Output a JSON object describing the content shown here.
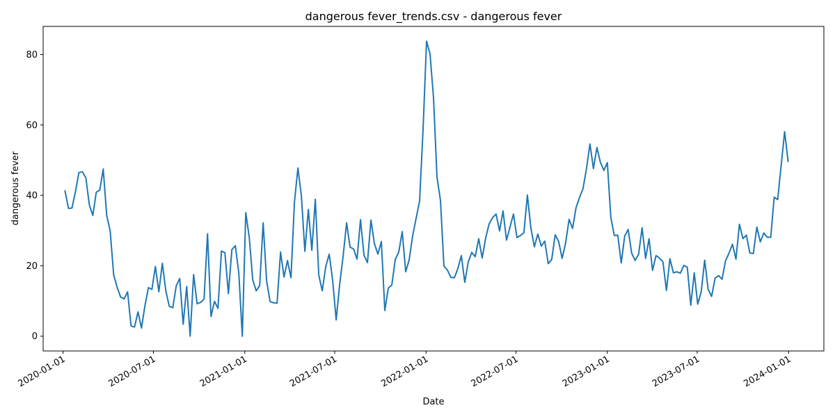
{
  "chart_data": {
    "type": "line",
    "title": "dangerous fever_trends.csv - dangerous fever",
    "xlabel": "Date",
    "ylabel": "dangerous fever",
    "xlim": [
      "2019-11-22",
      "2024-03-12"
    ],
    "ylim": [
      -4.2,
      88
    ],
    "x_ticks": [
      "2020-01-01",
      "2020-07-01",
      "2021-01-01",
      "2021-07-01",
      "2022-01-01",
      "2022-07-01",
      "2023-01-01",
      "2023-07-01",
      "2024-01-01"
    ],
    "y_ticks": [
      0,
      20,
      40,
      60,
      80
    ],
    "grid": false,
    "legend": "none",
    "series": [
      {
        "color": "#1f77b4",
        "points": [
          [
            "2020-01-05",
            41.3
          ],
          [
            "2020-01-12",
            36.3
          ],
          [
            "2020-01-19",
            36.4
          ],
          [
            "2020-01-26",
            41.0
          ],
          [
            "2020-02-02",
            46.5
          ],
          [
            "2020-02-09",
            46.7
          ],
          [
            "2020-02-16",
            45.0
          ],
          [
            "2020-02-23",
            37.3
          ],
          [
            "2020-03-01",
            34.3
          ],
          [
            "2020-03-08",
            40.9
          ],
          [
            "2020-03-15",
            41.5
          ],
          [
            "2020-03-22",
            47.5
          ],
          [
            "2020-03-29",
            34.3
          ],
          [
            "2020-04-05",
            29.9
          ],
          [
            "2020-04-12",
            17.4
          ],
          [
            "2020-04-19",
            13.9
          ],
          [
            "2020-04-26",
            11.1
          ],
          [
            "2020-05-03",
            10.6
          ],
          [
            "2020-05-10",
            12.6
          ],
          [
            "2020-05-17",
            2.9
          ],
          [
            "2020-05-24",
            2.6
          ],
          [
            "2020-05-31",
            6.9
          ],
          [
            "2020-06-07",
            2.3
          ],
          [
            "2020-06-14",
            8.7
          ],
          [
            "2020-06-21",
            13.8
          ],
          [
            "2020-06-28",
            13.3
          ],
          [
            "2020-07-05",
            19.8
          ],
          [
            "2020-07-12",
            12.6
          ],
          [
            "2020-07-19",
            20.7
          ],
          [
            "2020-07-26",
            12.9
          ],
          [
            "2020-08-02",
            8.5
          ],
          [
            "2020-08-09",
            8.1
          ],
          [
            "2020-08-16",
            14.3
          ],
          [
            "2020-08-23",
            16.4
          ],
          [
            "2020-08-30",
            3.4
          ],
          [
            "2020-09-06",
            14.1
          ],
          [
            "2020-09-13",
            0.0
          ],
          [
            "2020-09-20",
            17.5
          ],
          [
            "2020-09-27",
            9.2
          ],
          [
            "2020-10-04",
            9.6
          ],
          [
            "2020-10-11",
            10.5
          ],
          [
            "2020-10-18",
            29.1
          ],
          [
            "2020-10-25",
            5.6
          ],
          [
            "2020-11-01",
            9.9
          ],
          [
            "2020-11-08",
            7.9
          ],
          [
            "2020-11-15",
            24.2
          ],
          [
            "2020-11-22",
            23.7
          ],
          [
            "2020-11-29",
            12.1
          ],
          [
            "2020-12-06",
            24.6
          ],
          [
            "2020-12-13",
            25.7
          ],
          [
            "2020-12-20",
            17.9
          ],
          [
            "2020-12-27",
            0.0
          ],
          [
            "2021-01-03",
            35.1
          ],
          [
            "2021-01-10",
            28.1
          ],
          [
            "2021-01-17",
            16.0
          ],
          [
            "2021-01-24",
            12.9
          ],
          [
            "2021-01-31",
            14.4
          ],
          [
            "2021-02-07",
            32.2
          ],
          [
            "2021-02-14",
            15.6
          ],
          [
            "2021-02-21",
            9.8
          ],
          [
            "2021-02-28",
            9.5
          ],
          [
            "2021-03-07",
            9.4
          ],
          [
            "2021-03-14",
            23.9
          ],
          [
            "2021-03-21",
            16.8
          ],
          [
            "2021-03-28",
            21.5
          ],
          [
            "2021-04-04",
            16.6
          ],
          [
            "2021-04-11",
            38.1
          ],
          [
            "2021-04-18",
            47.8
          ],
          [
            "2021-04-25",
            39.8
          ],
          [
            "2021-05-02",
            24.1
          ],
          [
            "2021-05-09",
            36.0
          ],
          [
            "2021-05-16",
            24.4
          ],
          [
            "2021-05-23",
            38.9
          ],
          [
            "2021-05-30",
            17.3
          ],
          [
            "2021-06-06",
            12.9
          ],
          [
            "2021-06-13",
            19.8
          ],
          [
            "2021-06-20",
            23.3
          ],
          [
            "2021-06-27",
            15.8
          ],
          [
            "2021-07-04",
            4.6
          ],
          [
            "2021-07-11",
            14.6
          ],
          [
            "2021-07-18",
            22.7
          ],
          [
            "2021-07-25",
            32.2
          ],
          [
            "2021-08-01",
            25.3
          ],
          [
            "2021-08-08",
            24.8
          ],
          [
            "2021-08-15",
            21.9
          ],
          [
            "2021-08-22",
            33.1
          ],
          [
            "2021-08-29",
            23.0
          ],
          [
            "2021-09-05",
            20.9
          ],
          [
            "2021-09-12",
            33.0
          ],
          [
            "2021-09-19",
            26.3
          ],
          [
            "2021-09-26",
            23.3
          ],
          [
            "2021-10-03",
            26.9
          ],
          [
            "2021-10-10",
            7.3
          ],
          [
            "2021-10-17",
            13.7
          ],
          [
            "2021-10-24",
            14.5
          ],
          [
            "2021-10-31",
            21.8
          ],
          [
            "2021-11-07",
            23.9
          ],
          [
            "2021-11-14",
            29.7
          ],
          [
            "2021-11-21",
            18.3
          ],
          [
            "2021-11-28",
            21.7
          ],
          [
            "2021-12-05",
            28.5
          ],
          [
            "2021-12-12",
            33.5
          ],
          [
            "2021-12-19",
            38.4
          ],
          [
            "2021-12-26",
            58.8
          ],
          [
            "2022-01-02",
            83.8
          ],
          [
            "2022-01-09",
            80.2
          ],
          [
            "2022-01-16",
            67.8
          ],
          [
            "2022-01-23",
            45.2
          ],
          [
            "2022-01-30",
            38.6
          ],
          [
            "2022-02-06",
            19.9
          ],
          [
            "2022-02-13",
            18.8
          ],
          [
            "2022-02-20",
            16.7
          ],
          [
            "2022-02-27",
            16.6
          ],
          [
            "2022-03-06",
            19.2
          ],
          [
            "2022-03-13",
            22.9
          ],
          [
            "2022-03-20",
            15.3
          ],
          [
            "2022-03-27",
            21.1
          ],
          [
            "2022-04-03",
            23.8
          ],
          [
            "2022-04-10",
            22.6
          ],
          [
            "2022-04-17",
            27.7
          ],
          [
            "2022-04-24",
            22.2
          ],
          [
            "2022-05-01",
            27.9
          ],
          [
            "2022-05-08",
            31.9
          ],
          [
            "2022-05-15",
            33.7
          ],
          [
            "2022-05-22",
            34.7
          ],
          [
            "2022-05-29",
            29.9
          ],
          [
            "2022-06-05",
            35.6
          ],
          [
            "2022-06-12",
            27.3
          ],
          [
            "2022-06-19",
            31.0
          ],
          [
            "2022-06-26",
            34.7
          ],
          [
            "2022-07-03",
            28.0
          ],
          [
            "2022-07-10",
            28.6
          ],
          [
            "2022-07-17",
            29.4
          ],
          [
            "2022-07-24",
            40.1
          ],
          [
            "2022-07-31",
            30.8
          ],
          [
            "2022-08-07",
            25.4
          ],
          [
            "2022-08-14",
            29.0
          ],
          [
            "2022-08-21",
            25.6
          ],
          [
            "2022-08-28",
            27.0
          ],
          [
            "2022-09-04",
            20.6
          ],
          [
            "2022-09-11",
            21.8
          ],
          [
            "2022-09-18",
            28.8
          ],
          [
            "2022-09-25",
            26.9
          ],
          [
            "2022-10-02",
            22.1
          ],
          [
            "2022-10-09",
            26.5
          ],
          [
            "2022-10-16",
            33.2
          ],
          [
            "2022-10-23",
            30.6
          ],
          [
            "2022-10-30",
            36.5
          ],
          [
            "2022-11-06",
            39.4
          ],
          [
            "2022-11-13",
            41.9
          ],
          [
            "2022-11-20",
            47.6
          ],
          [
            "2022-11-27",
            54.6
          ],
          [
            "2022-12-04",
            47.6
          ],
          [
            "2022-12-11",
            53.6
          ],
          [
            "2022-12-18",
            49.4
          ],
          [
            "2022-12-25",
            47.1
          ],
          [
            "2023-01-01",
            49.3
          ],
          [
            "2023-01-08",
            33.8
          ],
          [
            "2023-01-15",
            28.6
          ],
          [
            "2023-01-22",
            28.7
          ],
          [
            "2023-01-29",
            20.8
          ],
          [
            "2023-02-05",
            28.5
          ],
          [
            "2023-02-12",
            30.3
          ],
          [
            "2023-02-19",
            23.6
          ],
          [
            "2023-02-26",
            21.5
          ],
          [
            "2023-03-05",
            23.3
          ],
          [
            "2023-03-12",
            30.8
          ],
          [
            "2023-03-19",
            22.1
          ],
          [
            "2023-03-26",
            27.7
          ],
          [
            "2023-04-02",
            18.7
          ],
          [
            "2023-04-09",
            22.9
          ],
          [
            "2023-04-16",
            22.2
          ],
          [
            "2023-04-23",
            21.1
          ],
          [
            "2023-04-30",
            13.0
          ],
          [
            "2023-05-07",
            22.0
          ],
          [
            "2023-05-14",
            18.0
          ],
          [
            "2023-05-21",
            18.3
          ],
          [
            "2023-05-28",
            17.9
          ],
          [
            "2023-06-04",
            20.1
          ],
          [
            "2023-06-11",
            19.6
          ],
          [
            "2023-06-18",
            8.8
          ],
          [
            "2023-06-25",
            18.0
          ],
          [
            "2023-07-02",
            9.1
          ],
          [
            "2023-07-09",
            12.6
          ],
          [
            "2023-07-16",
            21.6
          ],
          [
            "2023-07-23",
            13.3
          ],
          [
            "2023-07-30",
            11.3
          ],
          [
            "2023-08-06",
            16.5
          ],
          [
            "2023-08-13",
            17.2
          ],
          [
            "2023-08-20",
            16.2
          ],
          [
            "2023-08-27",
            21.4
          ],
          [
            "2023-09-03",
            23.6
          ],
          [
            "2023-09-10",
            26.1
          ],
          [
            "2023-09-17",
            21.9
          ],
          [
            "2023-09-24",
            31.8
          ],
          [
            "2023-10-01",
            27.7
          ],
          [
            "2023-10-08",
            28.7
          ],
          [
            "2023-10-15",
            23.6
          ],
          [
            "2023-10-22",
            23.5
          ],
          [
            "2023-10-29",
            31.0
          ],
          [
            "2023-11-05",
            26.8
          ],
          [
            "2023-11-12",
            29.3
          ],
          [
            "2023-11-19",
            28.1
          ],
          [
            "2023-11-26",
            28.1
          ],
          [
            "2023-12-03",
            39.5
          ],
          [
            "2023-12-10",
            38.8
          ],
          [
            "2023-12-17",
            48.5
          ],
          [
            "2023-12-24",
            58.1
          ],
          [
            "2023-12-31",
            49.6
          ]
        ]
      }
    ]
  }
}
